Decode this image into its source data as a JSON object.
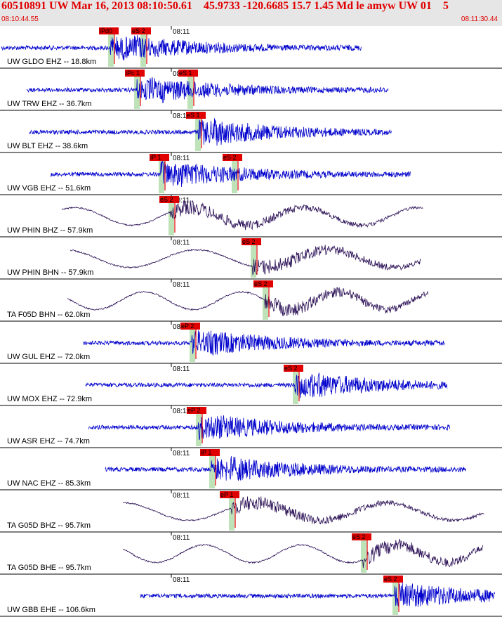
{
  "header": {
    "title": "60510891 UW Mar 16, 2013 08:10:50.61    45.9733 -120.6685 15.7 1.45 Md le amyw UW 01    5",
    "start_time": "08:10:44.55",
    "end_time": "08:11:30.44",
    "minute_label": "08:11"
  },
  "colors": {
    "header_text": "#e00000",
    "header_bg": "#e6e6e6",
    "trace_blue": "#0000cc",
    "trace_dark": "#2a0f55",
    "pick_red": "#e00000",
    "pick_window_green": "#bfe3b8"
  },
  "traces": [
    {
      "label": "UW GLDO EHZ -- 18.8km",
      "color": "blue",
      "wave": "short",
      "picks": [
        {
          "text": "iPd0",
          "t": 157
        },
        {
          "text": "eS 2",
          "t": 203
        }
      ]
    },
    {
      "label": "UW TRW EHZ -- 36.7km",
      "color": "blue",
      "wave": "short",
      "picks": [
        {
          "text": "iPc 1",
          "t": 194
        },
        {
          "text": "eS 1",
          "t": 270
        }
      ]
    },
    {
      "label": "UW BLT EHZ -- 38.6km",
      "color": "blue",
      "wave": "short",
      "picks": [
        {
          "text": "eS 1",
          "t": 281
        }
      ]
    },
    {
      "label": "UW VGB EHZ -- 51.6km",
      "color": "blue",
      "wave": "short",
      "picks": [
        {
          "text": "iP 1",
          "t": 229
        },
        {
          "text": "eS 2",
          "t": 333
        }
      ]
    },
    {
      "label": "UW PHIN BHZ -- 57.9km",
      "color": "dark",
      "wave": "long",
      "picks": [
        {
          "text": "eS 2",
          "t": 243
        }
      ]
    },
    {
      "label": "UW PHIN BHN -- 57.9km",
      "color": "dark",
      "wave": "long",
      "picks": [
        {
          "text": "eS 2",
          "t": 360
        }
      ]
    },
    {
      "label": "TA F05D BHN -- 62.0km",
      "color": "dark",
      "wave": "long",
      "picks": [
        {
          "text": "eS 2",
          "t": 377
        }
      ]
    },
    {
      "label": "UW GUL EHZ -- 72.0km",
      "color": "blue",
      "wave": "short",
      "picks": [
        {
          "text": "eP 2",
          "t": 273
        }
      ]
    },
    {
      "label": "UW MOX EHZ -- 72.9km",
      "color": "blue",
      "wave": "short",
      "picks": [
        {
          "text": "eS 2",
          "t": 420
        }
      ]
    },
    {
      "label": "UW ASR EHZ -- 74.7km",
      "color": "blue",
      "wave": "short",
      "picks": [
        {
          "text": "eP 2",
          "t": 282
        }
      ]
    },
    {
      "label": "UW NAC EHZ -- 85.3km",
      "color": "blue",
      "wave": "short",
      "picks": [
        {
          "text": "iP 1",
          "t": 301
        }
      ]
    },
    {
      "label": "TA G05D BHZ -- 95.7km",
      "color": "dark",
      "wave": "long",
      "picks": [
        {
          "text": "eP 1",
          "t": 329
        }
      ]
    },
    {
      "label": "TA G05D BHE -- 95.7km",
      "color": "dark",
      "wave": "long",
      "picks": [
        {
          "text": "eS 2",
          "t": 517
        }
      ]
    },
    {
      "label": "UW GBB EHE -- 106.6km",
      "color": "blue",
      "wave": "short",
      "picks": [
        {
          "text": "eS 2",
          "t": 562
        }
      ]
    }
  ]
}
